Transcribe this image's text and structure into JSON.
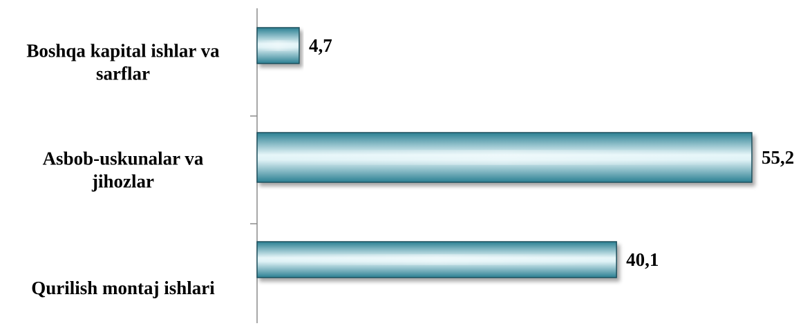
{
  "chart_data": {
    "type": "bar",
    "orientation": "horizontal",
    "categories": [
      [
        "Boshqa kapital ishlar va",
        "sarflar"
      ],
      [
        "Asbob-uskunalar va",
        "jihozlar"
      ],
      [
        "Qurilish montaj ishlari"
      ]
    ],
    "values": [
      4.7,
      55.2,
      40.1
    ],
    "value_labels": [
      "4,7",
      "55,2",
      "40,1"
    ],
    "xlim": [
      0,
      55.2
    ],
    "grid": false,
    "legend": "none",
    "colors": {
      "bar_edge": "#2a7f92",
      "bar_light": "#e6f6f9",
      "bar_shadow": "#1f4f5c"
    }
  }
}
